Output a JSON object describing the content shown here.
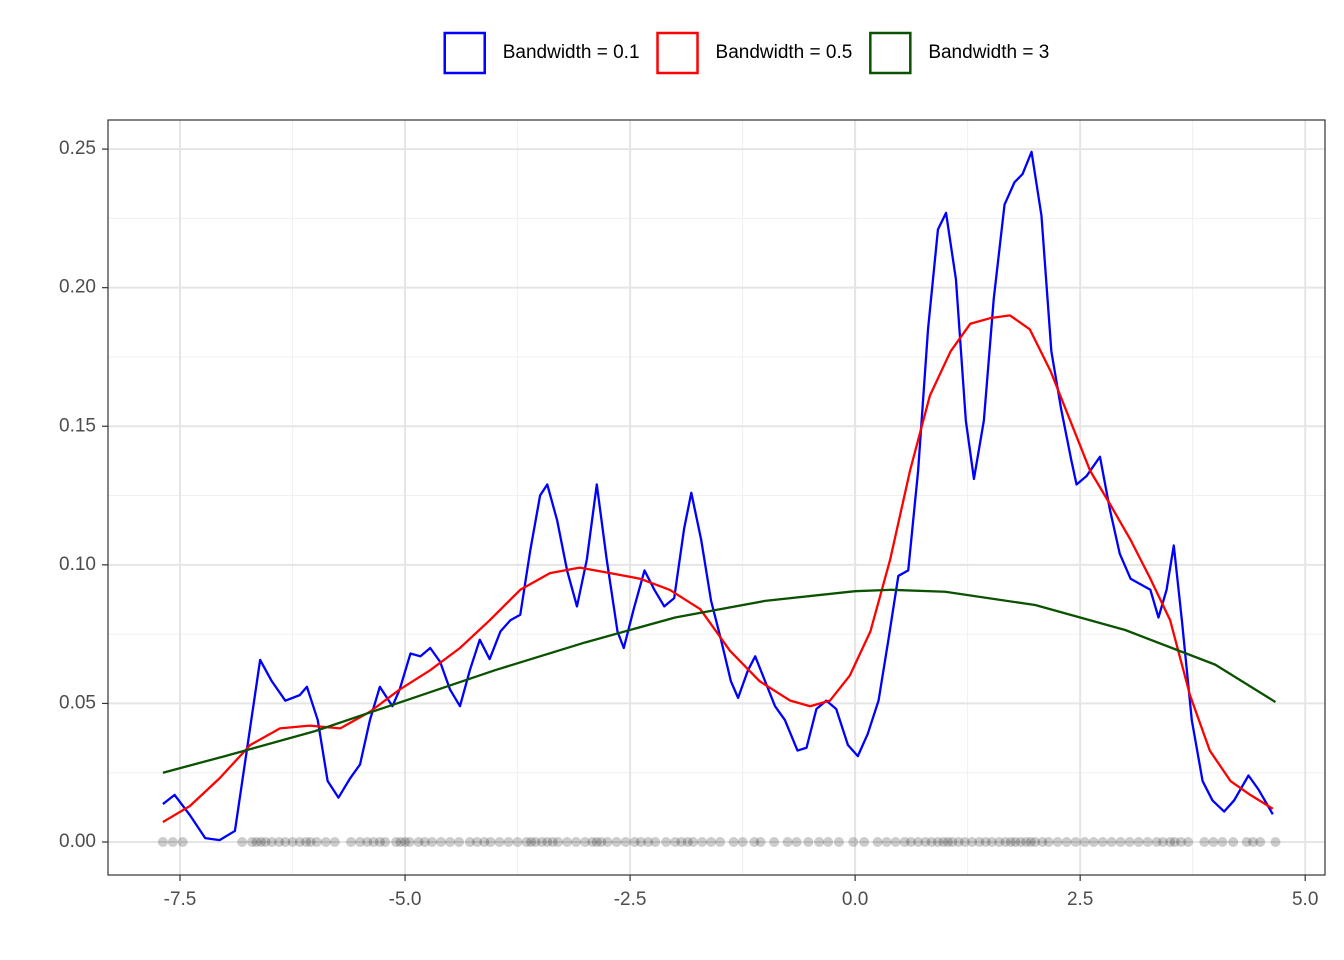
{
  "chart_data": {
    "type": "line",
    "legend": "top",
    "grid": true,
    "minor_grid": true,
    "xlim": [
      -8.3,
      5.22
    ],
    "ylim": [
      -0.0119,
      0.2605
    ],
    "xticks": [
      -7.5,
      {
        "value": -5,
        "label": "-5.0"
      },
      -2.5,
      {
        "value": 0,
        "label": "0.0"
      },
      2.5,
      {
        "value": 5,
        "label": "5.0"
      }
    ],
    "yticks": [
      {
        "value": 0,
        "label": "0.00"
      },
      0.05,
      {
        "value": 0.1,
        "label": "0.10"
      },
      0.15,
      {
        "value": 0.2,
        "label": "0.20"
      },
      0.25
    ],
    "series": [
      {
        "name": "Bandwidth = 0.1",
        "color": "#0000ff",
        "x": [
          -7.69,
          -7.56,
          -7.39,
          -7.22,
          -7.06,
          -6.89,
          -6.74,
          -6.61,
          -6.48,
          -6.33,
          -6.17,
          -6.09,
          -5.97,
          -5.86,
          -5.74,
          -5.61,
          -5.5,
          -5.39,
          -5.28,
          -5.14,
          -5.06,
          -4.94,
          -4.83,
          -4.72,
          -4.61,
          -4.5,
          -4.39,
          -4.28,
          -4.17,
          -4.06,
          -3.94,
          -3.83,
          -3.72,
          -3.61,
          -3.5,
          -3.42,
          -3.31,
          -3.2,
          -3.09,
          -2.98,
          -2.87,
          -2.76,
          -2.64,
          -2.57,
          -2.46,
          -2.34,
          -2.23,
          -2.12,
          -2.01,
          -1.9,
          -1.82,
          -1.71,
          -1.6,
          -1.49,
          -1.38,
          -1.3,
          -1.19,
          -1.11,
          -1.0,
          -0.89,
          -0.78,
          -0.64,
          -0.54,
          -0.43,
          -0.32,
          -0.21,
          -0.08,
          0.03,
          0.14,
          0.26,
          0.37,
          0.48,
          0.59,
          0.7,
          0.81,
          0.92,
          1.01,
          1.12,
          1.23,
          1.32,
          1.43,
          1.54,
          1.66,
          1.77,
          1.86,
          1.96,
          2.07,
          2.18,
          2.29,
          2.4,
          2.46,
          2.57,
          2.72,
          2.83,
          2.94,
          3.06,
          3.17,
          3.28,
          3.37,
          3.46,
          3.54,
          3.63,
          3.74,
          3.86,
          3.97,
          4.1,
          4.21,
          4.37,
          4.48,
          4.64
        ],
        "values": [
          0.0137,
          0.017,
          0.0097,
          0.0014,
          0.0007,
          0.004,
          0.037,
          0.0657,
          0.058,
          0.051,
          0.053,
          0.056,
          0.044,
          0.022,
          0.016,
          0.023,
          0.028,
          0.044,
          0.056,
          0.049,
          0.055,
          0.068,
          0.067,
          0.07,
          0.065,
          0.055,
          0.049,
          0.062,
          0.073,
          0.066,
          0.076,
          0.08,
          0.082,
          0.105,
          0.125,
          0.129,
          0.116,
          0.098,
          0.085,
          0.102,
          0.129,
          0.102,
          0.076,
          0.07,
          0.084,
          0.098,
          0.091,
          0.085,
          0.088,
          0.113,
          0.126,
          0.109,
          0.087,
          0.073,
          0.058,
          0.052,
          0.062,
          0.067,
          0.058,
          0.049,
          0.044,
          0.033,
          0.034,
          0.048,
          0.051,
          0.048,
          0.035,
          0.031,
          0.039,
          0.051,
          0.073,
          0.096,
          0.098,
          0.134,
          0.185,
          0.221,
          0.227,
          0.203,
          0.152,
          0.131,
          0.152,
          0.196,
          0.23,
          0.238,
          0.241,
          0.249,
          0.226,
          0.177,
          0.156,
          0.138,
          0.129,
          0.132,
          0.139,
          0.12,
          0.104,
          0.095,
          0.093,
          0.091,
          0.081,
          0.091,
          0.107,
          0.08,
          0.044,
          0.022,
          0.015,
          0.011,
          0.015,
          0.024,
          0.019,
          0.01
        ]
      },
      {
        "name": "Bandwidth = 0.5",
        "color": "#ff0000",
        "x": [
          -7.69,
          -7.39,
          -7.06,
          -6.72,
          -6.39,
          -6.06,
          -5.72,
          -5.39,
          -5.06,
          -4.72,
          -4.39,
          -4.06,
          -3.72,
          -3.39,
          -3.06,
          -2.72,
          -2.39,
          -2.06,
          -1.72,
          -1.39,
          -1.06,
          -0.72,
          -0.5,
          -0.28,
          -0.06,
          0.17,
          0.39,
          0.61,
          0.83,
          1.06,
          1.28,
          1.5,
          1.72,
          1.94,
          2.17,
          2.39,
          2.61,
          2.83,
          3.06,
          3.28,
          3.5,
          3.72,
          3.94,
          4.17,
          4.39,
          4.64
        ],
        "values": [
          0.0072,
          0.013,
          0.023,
          0.035,
          0.041,
          0.042,
          0.041,
          0.047,
          0.055,
          0.062,
          0.07,
          0.08,
          0.091,
          0.097,
          0.099,
          0.097,
          0.095,
          0.091,
          0.084,
          0.069,
          0.058,
          0.051,
          0.049,
          0.051,
          0.06,
          0.076,
          0.102,
          0.134,
          0.161,
          0.177,
          0.187,
          0.189,
          0.19,
          0.185,
          0.17,
          0.152,
          0.134,
          0.122,
          0.109,
          0.095,
          0.08,
          0.053,
          0.033,
          0.022,
          0.017,
          0.012
        ]
      },
      {
        "name": "Bandwidth = 3",
        "color": "#0b5200",
        "x": [
          -7.69,
          -7,
          -6,
          -5,
          -4,
          -3,
          -2,
          -1,
          0,
          0.4,
          1,
          2,
          3,
          4,
          4.67
        ],
        "values": [
          0.025,
          0.031,
          0.04,
          0.051,
          0.062,
          0.072,
          0.081,
          0.087,
          0.0905,
          0.091,
          0.0903,
          0.0855,
          0.0765,
          0.064,
          0.0505
        ]
      }
    ],
    "rug": {
      "color": "#000000",
      "opacity": 0.2,
      "x": [
        -7.69,
        -7.58,
        -7.47,
        -6.81,
        -6.7,
        -6.65,
        -6.6,
        -6.55,
        -6.48,
        -6.4,
        -6.33,
        -6.25,
        -6.17,
        -6.1,
        -6.05,
        -5.98,
        -5.88,
        -5.78,
        -5.6,
        -5.5,
        -5.42,
        -5.35,
        -5.28,
        -5.22,
        -5.1,
        -5.05,
        -5.0,
        -4.95,
        -4.85,
        -4.78,
        -4.7,
        -4.6,
        -4.5,
        -4.4,
        -4.28,
        -4.2,
        -4.12,
        -4.05,
        -3.95,
        -3.85,
        -3.75,
        -3.65,
        -3.6,
        -3.55,
        -3.48,
        -3.42,
        -3.36,
        -3.3,
        -3.2,
        -3.1,
        -3.0,
        -2.92,
        -2.87,
        -2.82,
        -2.75,
        -2.65,
        -2.55,
        -2.45,
        -2.38,
        -2.3,
        -2.22,
        -2.1,
        -2.0,
        -1.93,
        -1.86,
        -1.8,
        -1.7,
        -1.6,
        -1.5,
        -1.35,
        -1.25,
        -1.12,
        -1.05,
        -0.9,
        -0.75,
        -0.65,
        -0.52,
        -0.4,
        -0.3,
        -0.18,
        -0.02,
        0.1,
        0.25,
        0.35,
        0.45,
        0.55,
        0.62,
        0.7,
        0.78,
        0.85,
        0.92,
        0.98,
        1.03,
        1.08,
        1.15,
        1.22,
        1.3,
        1.38,
        1.45,
        1.52,
        1.6,
        1.67,
        1.73,
        1.78,
        1.84,
        1.9,
        1.95,
        2.0,
        2.08,
        2.15,
        2.25,
        2.35,
        2.45,
        2.55,
        2.65,
        2.75,
        2.85,
        2.95,
        3.05,
        3.15,
        3.25,
        3.35,
        3.42,
        3.5,
        3.55,
        3.62,
        3.7,
        3.88,
        3.98,
        4.08,
        4.2,
        4.35,
        4.42,
        4.5,
        4.67
      ]
    }
  }
}
